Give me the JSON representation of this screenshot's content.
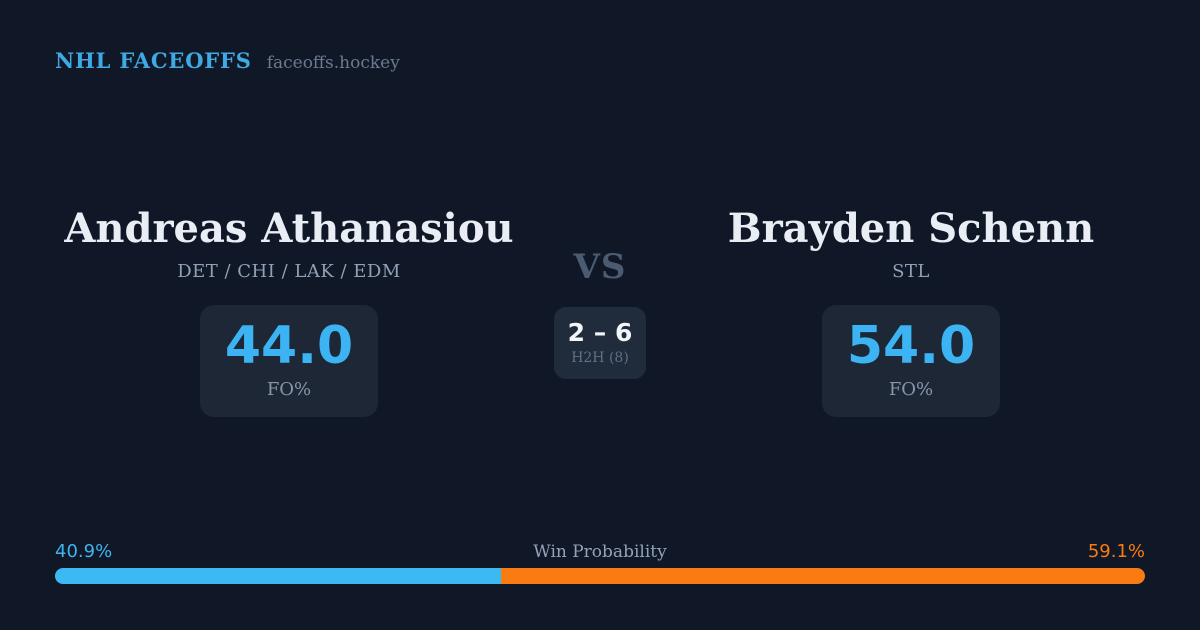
{
  "header": {
    "brand": "NHL FACEOFFS",
    "site": "faceoffs.hockey"
  },
  "players": {
    "left": {
      "name": "Andreas Athanasiou",
      "teams": "DET / CHI / LAK / EDM",
      "fo_value": "44.0",
      "fo_label": "FO%"
    },
    "right": {
      "name": "Brayden Schenn",
      "teams": "STL",
      "fo_value": "54.0",
      "fo_label": "FO%"
    }
  },
  "center": {
    "vs": "VS",
    "h2h_score": "2 – 6",
    "h2h_label": "H2H (8)"
  },
  "win_probability": {
    "label": "Win Probability",
    "left_pct_text": "40.9%",
    "right_pct_text": "59.1%",
    "left_value": 40.9,
    "right_value": 59.1
  },
  "colors": {
    "background": "#101827",
    "card_background": "#1d2736",
    "h2h_background": "#202b3c",
    "accent_blue": "#3cb4f3",
    "accent_orange": "#f97b12",
    "brand_blue": "#3fa9e4",
    "name_white": "#e9edf4",
    "muted_gray": "#90a0b6",
    "vs_gray": "#4b5c72"
  }
}
